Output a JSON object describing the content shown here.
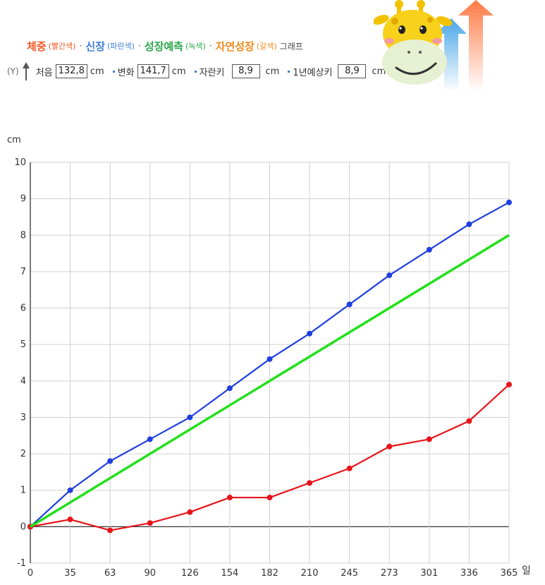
{
  "legend": {
    "weight": "체중",
    "weight_color": "(빨간색)",
    "height": "신장",
    "height_color": "(파란색)",
    "predicted": "성장예측",
    "predicted_color": "(녹색)",
    "natural": "자연성장",
    "natural_color": "(갈색)",
    "separator": "·",
    "suffix": "그래프"
  },
  "info": {
    "y_mark": "(Y)",
    "initial_label": "처음",
    "initial_value": "132,8",
    "initial_unit": "cm",
    "change_label": "변화",
    "change_value": "141,7",
    "change_unit": "cm",
    "grown_label": "자란키",
    "grown_value": "8,9",
    "grown_unit": "cm",
    "expected_label": "1년예상키",
    "expected_value": "8,9",
    "expected_unit": "cm"
  },
  "colors": {
    "weight": "#e8141b",
    "height": "#1f3fe0",
    "predicted": "#22e01a",
    "grid": "#d0d0d0",
    "axis": "#333333"
  },
  "mascot": "giraffe-mascot-with-growth-arrows",
  "chart_data": {
    "type": "line",
    "ylabel": "cm",
    "xlabel": "일",
    "ylim": [
      -1,
      10
    ],
    "yticks": [
      -1,
      0,
      1,
      2,
      3,
      4,
      5,
      6,
      7,
      8,
      9,
      10
    ],
    "x": [
      0,
      35,
      63,
      90,
      126,
      154,
      182,
      210,
      245,
      273,
      301,
      336,
      365
    ],
    "grid": true,
    "series": [
      {
        "key": "height",
        "values": [
          0,
          1.0,
          1.8,
          2.4,
          3.0,
          3.8,
          4.6,
          5.3,
          6.1,
          6.9,
          7.6,
          8.3,
          8.9
        ],
        "markers": true
      },
      {
        "key": "weight",
        "values": [
          0,
          0.2,
          -0.1,
          0.1,
          0.4,
          0.8,
          0.8,
          1.2,
          1.6,
          2.2,
          2.4,
          2.9,
          3.9
        ],
        "markers": true
      },
      {
        "key": "predicted",
        "x": [
          0,
          365
        ],
        "values": [
          0,
          8.0
        ],
        "markers": false
      }
    ]
  }
}
